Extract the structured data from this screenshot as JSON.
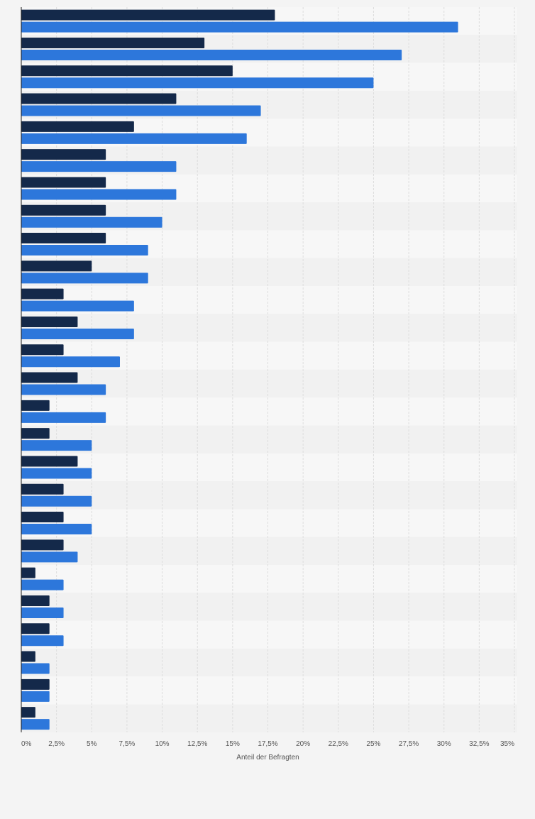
{
  "colors": {
    "background": "#f4f4f4",
    "band_light": "#f7f7f7",
    "band_dark": "#f1f1f1",
    "grid": "#dddddd",
    "axis": "#1a1a1a",
    "series_dark": "#14294a",
    "series_blue": "#2d77db",
    "tick_text": "#555555"
  },
  "chart_data": {
    "type": "bar",
    "orientation": "horizontal",
    "title": "",
    "xlabel": "Anteil der Befragten",
    "ylabel": "",
    "xlim": [
      0,
      35
    ],
    "x_unit": "%",
    "grid": true,
    "legend": "none",
    "x_ticks": [
      "0%",
      "2,5%",
      "5%",
      "7,5%",
      "10%",
      "12,5%",
      "15%",
      "17,5%",
      "20%",
      "22,5%",
      "25%",
      "27,5%",
      "30%",
      "32,5%",
      "35%"
    ],
    "x_tick_values": [
      0,
      2.5,
      5,
      7.5,
      10,
      12.5,
      15,
      17.5,
      20,
      22.5,
      25,
      27.5,
      30,
      32.5,
      35
    ],
    "categories": [
      "",
      "",
      "",
      "",
      "",
      "",
      "",
      "",
      "",
      "",
      "",
      "",
      "",
      "",
      "",
      "",
      "",
      "",
      "",
      "",
      "",
      "",
      "",
      "",
      "",
      ""
    ],
    "series": [
      {
        "color": "#14294a",
        "values": [
          18,
          13,
          15,
          11,
          8,
          6,
          6,
          6,
          6,
          5,
          3,
          4,
          3,
          4,
          2,
          2,
          4,
          3,
          3,
          3,
          1,
          2,
          2,
          1,
          2,
          1
        ]
      },
      {
        "color": "#2d77db",
        "values": [
          31,
          27,
          25,
          17,
          16,
          11,
          11,
          10,
          9,
          9,
          8,
          8,
          7,
          6,
          6,
          5,
          5,
          5,
          5,
          4,
          3,
          3,
          3,
          2,
          2,
          2
        ]
      }
    ]
  }
}
